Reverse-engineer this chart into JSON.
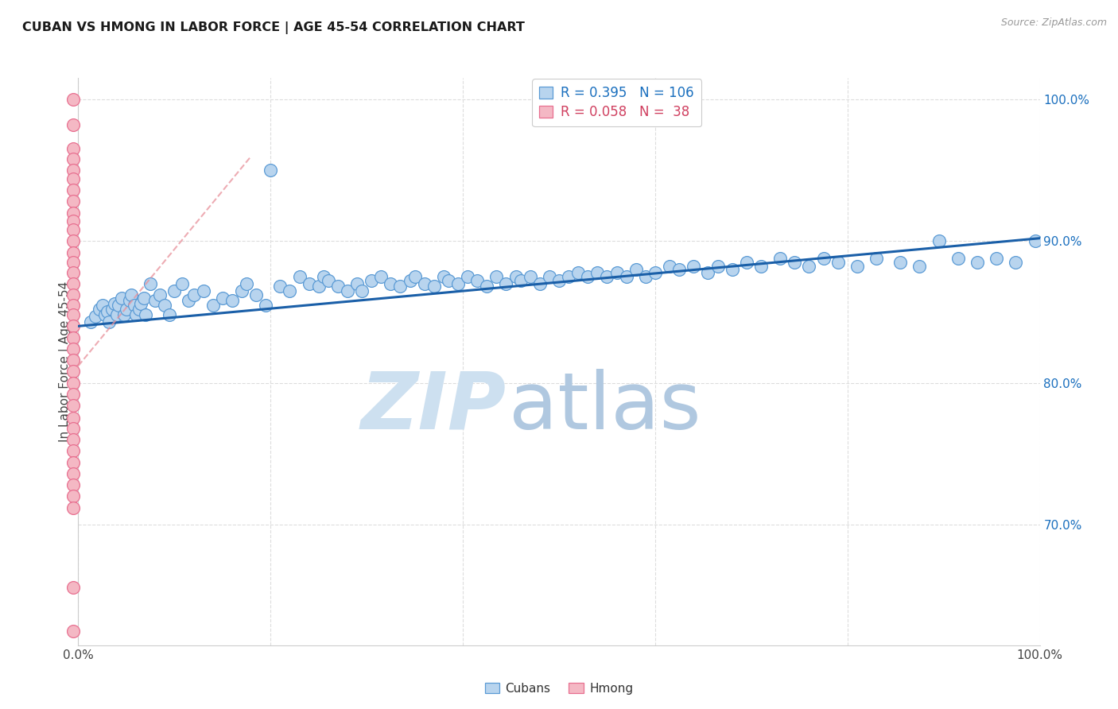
{
  "title": "CUBAN VS HMONG IN LABOR FORCE | AGE 45-54 CORRELATION CHART",
  "source": "Source: ZipAtlas.com",
  "ylabel": "In Labor Force | Age 45-54",
  "xlim": [
    0.0,
    1.0
  ],
  "ylim": [
    0.615,
    1.015
  ],
  "xtick_positions": [
    0.0,
    0.2,
    0.4,
    0.6,
    0.8,
    1.0
  ],
  "xtick_labels": [
    "0.0%",
    "",
    "",
    "",
    "",
    "100.0%"
  ],
  "ytick_positions": [
    0.7,
    0.8,
    0.9,
    1.0
  ],
  "ytick_labels": [
    "70.0%",
    "80.0%",
    "90.0%",
    "100.0%"
  ],
  "cuban_fill": "#b8d4ee",
  "cuban_edge": "#5b9bd5",
  "hmong_fill": "#f4b8c4",
  "hmong_edge": "#e87090",
  "trend_cuban": "#1a5fa8",
  "trend_hmong": "#e8909a",
  "watermark_zip_color": "#cde0f0",
  "watermark_atlas_color": "#b0c8e0",
  "legend_R_color": "#1a6fbe",
  "legend_N_color": "#1a6fbe",
  "legend_hmong_color": "#d04060",
  "cuban_x": [
    0.013,
    0.018,
    0.022,
    0.025,
    0.028,
    0.03,
    0.032,
    0.035,
    0.038,
    0.04,
    0.042,
    0.045,
    0.048,
    0.05,
    0.053,
    0.055,
    0.058,
    0.06,
    0.063,
    0.065,
    0.068,
    0.07,
    0.075,
    0.08,
    0.085,
    0.09,
    0.095,
    0.1,
    0.108,
    0.115,
    0.12,
    0.13,
    0.14,
    0.15,
    0.16,
    0.17,
    0.175,
    0.185,
    0.195,
    0.2,
    0.21,
    0.22,
    0.23,
    0.24,
    0.25,
    0.255,
    0.26,
    0.27,
    0.28,
    0.29,
    0.295,
    0.305,
    0.315,
    0.325,
    0.335,
    0.345,
    0.35,
    0.36,
    0.37,
    0.38,
    0.385,
    0.395,
    0.405,
    0.415,
    0.425,
    0.435,
    0.445,
    0.455,
    0.46,
    0.47,
    0.48,
    0.49,
    0.5,
    0.51,
    0.52,
    0.53,
    0.54,
    0.55,
    0.56,
    0.57,
    0.58,
    0.59,
    0.6,
    0.615,
    0.625,
    0.64,
    0.655,
    0.665,
    0.68,
    0.695,
    0.71,
    0.73,
    0.745,
    0.76,
    0.775,
    0.79,
    0.81,
    0.83,
    0.855,
    0.875,
    0.895,
    0.915,
    0.935,
    0.955,
    0.975,
    0.995
  ],
  "cuban_y": [
    0.843,
    0.847,
    0.852,
    0.855,
    0.848,
    0.85,
    0.843,
    0.852,
    0.856,
    0.848,
    0.855,
    0.86,
    0.848,
    0.852,
    0.858,
    0.862,
    0.855,
    0.848,
    0.852,
    0.856,
    0.86,
    0.848,
    0.87,
    0.858,
    0.862,
    0.855,
    0.848,
    0.865,
    0.87,
    0.858,
    0.862,
    0.865,
    0.855,
    0.86,
    0.858,
    0.865,
    0.87,
    0.862,
    0.855,
    0.95,
    0.868,
    0.865,
    0.875,
    0.87,
    0.868,
    0.875,
    0.872,
    0.868,
    0.865,
    0.87,
    0.865,
    0.872,
    0.875,
    0.87,
    0.868,
    0.872,
    0.875,
    0.87,
    0.868,
    0.875,
    0.872,
    0.87,
    0.875,
    0.872,
    0.868,
    0.875,
    0.87,
    0.875,
    0.872,
    0.875,
    0.87,
    0.875,
    0.872,
    0.875,
    0.878,
    0.875,
    0.878,
    0.875,
    0.878,
    0.875,
    0.88,
    0.875,
    0.878,
    0.882,
    0.88,
    0.882,
    0.878,
    0.882,
    0.88,
    0.885,
    0.882,
    0.888,
    0.885,
    0.882,
    0.888,
    0.885,
    0.882,
    0.888,
    0.885,
    0.882,
    0.9,
    0.888,
    0.885,
    0.888,
    0.885,
    0.9
  ],
  "hmong_x": [
    -0.005,
    -0.005,
    -0.005,
    -0.005,
    -0.005,
    -0.005,
    -0.005,
    -0.005,
    -0.005,
    -0.005,
    -0.005,
    -0.005,
    -0.005,
    -0.005,
    -0.005,
    -0.005,
    -0.005,
    -0.005,
    -0.005,
    -0.005,
    -0.005,
    -0.005,
    -0.005,
    -0.005,
    -0.005,
    -0.005,
    -0.005,
    -0.005,
    -0.005,
    -0.005,
    -0.005,
    -0.005,
    -0.005,
    -0.005,
    -0.005,
    -0.005,
    -0.005,
    -0.005
  ],
  "hmong_y": [
    1.0,
    0.982,
    0.965,
    0.958,
    0.95,
    0.944,
    0.936,
    0.928,
    0.92,
    0.914,
    0.908,
    0.9,
    0.892,
    0.885,
    0.878,
    0.87,
    0.862,
    0.855,
    0.848,
    0.84,
    0.832,
    0.824,
    0.816,
    0.808,
    0.8,
    0.792,
    0.784,
    0.775,
    0.768,
    0.76,
    0.752,
    0.744,
    0.736,
    0.728,
    0.72,
    0.712,
    0.656,
    0.625
  ],
  "trend_cuban_x0": 0.0,
  "trend_cuban_y0": 0.84,
  "trend_cuban_x1": 1.0,
  "trend_cuban_y1": 0.902,
  "trend_hmong_x0": 0.0,
  "trend_hmong_y0": 0.812,
  "trend_hmong_x1": 0.18,
  "trend_hmong_y1": 0.96
}
